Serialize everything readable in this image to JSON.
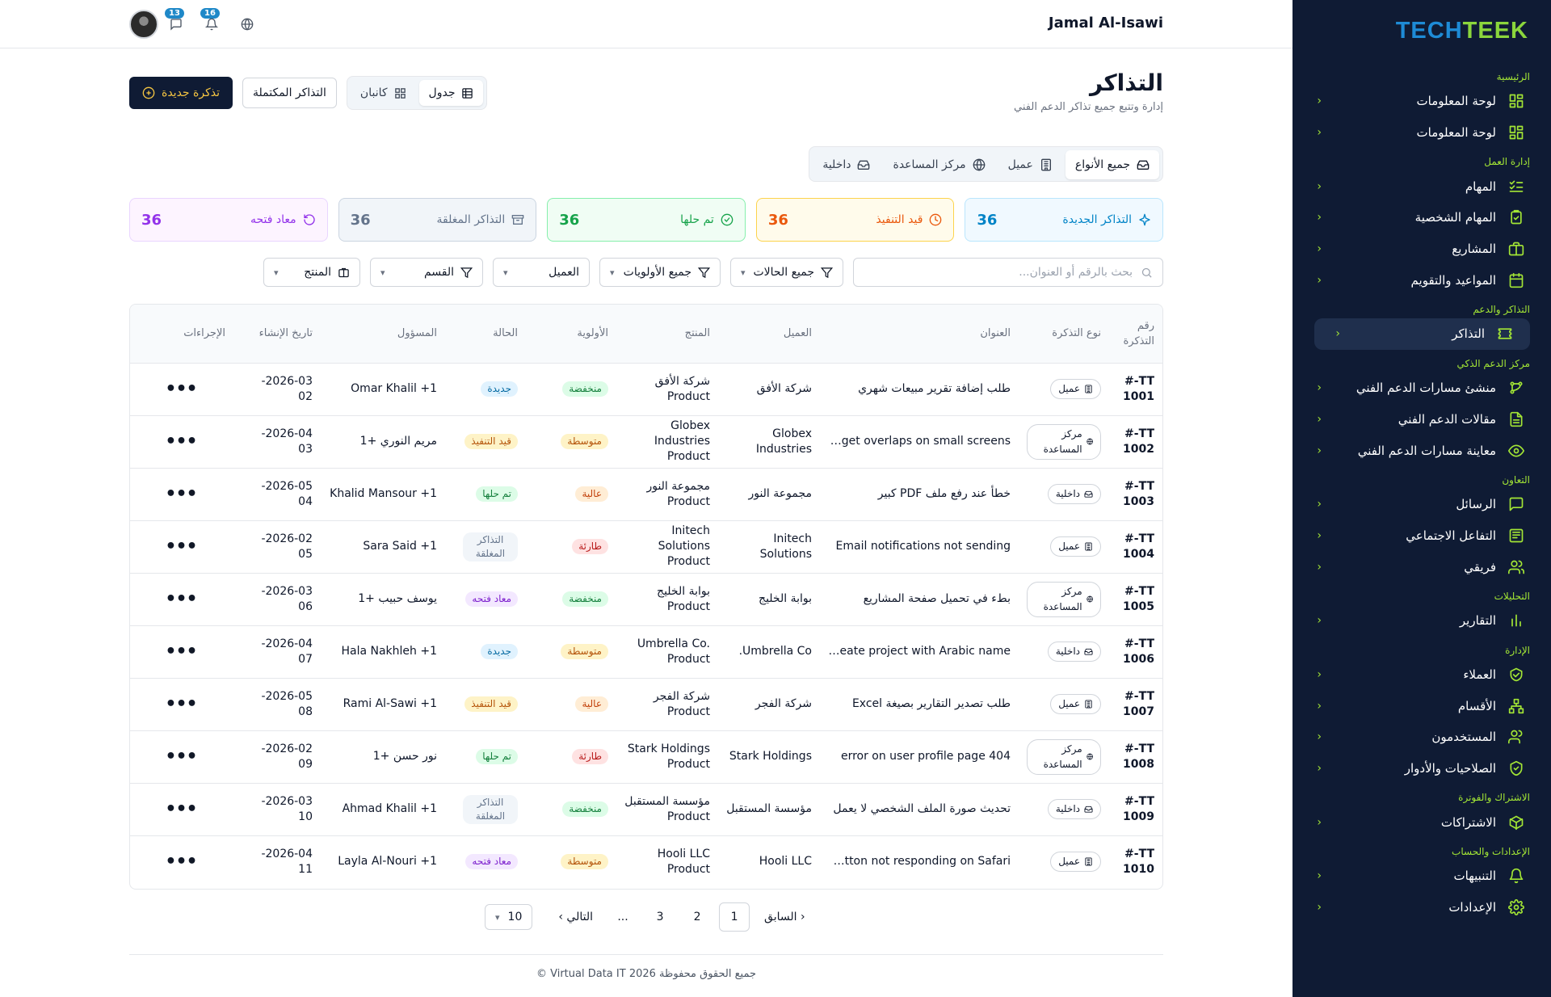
{
  "brand": {
    "part1": "TECH",
    "part2": "TEEK"
  },
  "sidebar": {
    "sections": [
      {
        "title": "الرئيسية",
        "items": [
          {
            "label": "لوحة المعلومات",
            "icon": "dashboard-icon"
          },
          {
            "label": "لوحة المعلومات",
            "icon": "dashboard-icon"
          }
        ]
      },
      {
        "title": "إدارة العمل",
        "items": [
          {
            "label": "المهام",
            "icon": "tasks-icon"
          },
          {
            "label": "المهام الشخصية",
            "icon": "clipboard-icon"
          },
          {
            "label": "المشاريع",
            "icon": "briefcase-icon"
          },
          {
            "label": "المواعيد والتقويم",
            "icon": "calendar-icon"
          }
        ]
      },
      {
        "title": "التذاكر والدعم",
        "items": [
          {
            "label": "التذاكر",
            "icon": "ticket-icon",
            "active": true
          }
        ]
      },
      {
        "title": "مركز الدعم الذكي",
        "items": [
          {
            "label": "منشئ مسارات الدعم الفني",
            "icon": "flow-icon"
          },
          {
            "label": "مقالات الدعم الفني",
            "icon": "article-icon"
          },
          {
            "label": "معاينة مسارات الدعم الفني",
            "icon": "eye-icon"
          }
        ]
      },
      {
        "title": "التعاون",
        "items": [
          {
            "label": "الرسائل",
            "icon": "message-icon"
          },
          {
            "label": "التفاعل الاجتماعي",
            "icon": "newspaper-icon"
          },
          {
            "label": "فريقي",
            "icon": "team-icon"
          }
        ]
      },
      {
        "title": "التحليلات",
        "items": [
          {
            "label": "التقارير",
            "icon": "chart-icon"
          }
        ]
      },
      {
        "title": "الإدارة",
        "items": [
          {
            "label": "العملاء",
            "icon": "handshake-icon"
          },
          {
            "label": "الأقسام",
            "icon": "departments-icon"
          },
          {
            "label": "المستخدمون",
            "icon": "users-icon"
          },
          {
            "label": "الصلاحيات والأدوار",
            "icon": "shield-icon"
          }
        ]
      },
      {
        "title": "الاشتراك والفوترة",
        "items": [
          {
            "label": "الاشتراكات",
            "icon": "package-icon"
          }
        ]
      },
      {
        "title": "الإعدادات والحساب",
        "items": [
          {
            "label": "التنبيهات",
            "icon": "bell-icon"
          },
          {
            "label": "الإعدادات",
            "icon": "gear-icon"
          }
        ]
      }
    ]
  },
  "header": {
    "user_name": "Jamal Al-Isawi",
    "messages_count": "13",
    "notifications_count": "16"
  },
  "page": {
    "title": "التذاكر",
    "subtitle": "إدارة وتتبع جميع تذاكر الدعم الفني"
  },
  "actions": {
    "new_ticket": "تذكرة جديدة",
    "completed_tickets": "التذاكر المكتملة",
    "view_table": "جدول",
    "view_kanban": "كانبان"
  },
  "type_tabs": [
    {
      "label": "جميع الأنواع",
      "active": true
    },
    {
      "label": "عميل"
    },
    {
      "label": "مركز المساعدة"
    },
    {
      "label": "داخلية"
    }
  ],
  "stats": [
    {
      "label": "التذاكر الجديدة",
      "value": "36",
      "color": "#0284c7",
      "bg": "#f0f9ff",
      "border": "#bae6fd"
    },
    {
      "label": "قيد التنفيذ",
      "value": "36",
      "color": "#ea580c",
      "bg": "#fffbeb",
      "border": "#fcd34d"
    },
    {
      "label": "تم حلها",
      "value": "36",
      "color": "#16a34a",
      "bg": "#f0fdf4",
      "border": "#86efac"
    },
    {
      "label": "التذاكر المغلقة",
      "value": "36",
      "color": "#64748b",
      "bg": "#f1f5f9",
      "border": "#cbd5e1"
    },
    {
      "label": "معاد فتحه",
      "value": "36",
      "color": "#9333ea",
      "bg": "#fdf4ff",
      "border": "#e9d5ff"
    }
  ],
  "filters": {
    "search_placeholder": "بحث بالرقم أو العنوان...",
    "status": "جميع الحالات",
    "priority": "جميع الأولويات",
    "client": "العميل",
    "department": "القسم",
    "product": "المنتج"
  },
  "table": {
    "headers": [
      "رقم التذكرة",
      "نوع التذكرة",
      "العنوان",
      "العميل",
      "المنتج",
      "الأولوية",
      "الحالة",
      "المسؤول",
      "تاريخ الإنشاء",
      "الإجراءات"
    ],
    "rows": [
      {
        "id": "TT-#\n1001",
        "type": "عميل",
        "title": "طلب إضافة تقرير مبيعات شهري",
        "client": "شركة الأفق",
        "product": "شركة الأفق Product",
        "priority": "منخفضة",
        "status": "جديدة",
        "owner": "Omar Khalil +1",
        "date": "2026-03-\n02"
      },
      {
        "id": "TT-#\n1002",
        "type": "مركز المساعدة",
        "title": "Widget overlaps on small screens...",
        "client": "Globex Industries",
        "product": "Globex Industries Product",
        "priority": "متوسطة",
        "status": "قيد التنفيذ",
        "owner": "مريم النوري +1",
        "date": "2026-04-\n03"
      },
      {
        "id": "TT-#\n1003",
        "type": "داخلية",
        "title": "خطأ عند رفع ملف PDF كبير",
        "client": "مجموعة النور",
        "product": "مجموعة النور Product",
        "priority": "عالية",
        "status": "تم حلها",
        "owner": "Khalid Mansour +1",
        "date": "2026-05-\n04"
      },
      {
        "id": "TT-#\n1004",
        "type": "عميل",
        "title": "Email notifications not sending",
        "client": "Initech Solutions",
        "product": "Initech Solutions Product",
        "priority": "طارئة",
        "status": "التذاكر المغلقة",
        "owner": "Sara Said +1",
        "date": "2026-02-\n05"
      },
      {
        "id": "TT-#\n1005",
        "type": "مركز المساعدة",
        "title": "بطء في تحميل صفحة المشاريع",
        "client": "بوابة الخليج",
        "product": "بوابة الخليج Product",
        "priority": "منخفضة",
        "status": "معاد فتحه",
        "owner": "يوسف حبيب +1",
        "date": "2026-03-\n06"
      },
      {
        "id": "TT-#\n1006",
        "type": "داخلية",
        "title": "Cannot create project with Arabic name...",
        "client": "Umbrella Co.",
        "product": "Umbrella Co. Product",
        "priority": "متوسطة",
        "status": "جديدة",
        "owner": "Hala Nakhleh +1",
        "date": "2026-04-\n07"
      },
      {
        "id": "TT-#\n1007",
        "type": "عميل",
        "title": "طلب تصدير التقارير بصيغة Excel",
        "client": "شركة الفجر",
        "product": "شركة الفجر Product",
        "priority": "عالية",
        "status": "قيد التنفيذ",
        "owner": "Rami Al-Sawi +1",
        "date": "2026-05-\n08"
      },
      {
        "id": "TT-#\n1008",
        "type": "مركز المساعدة",
        "title": "404 error on user profile page",
        "client": "Stark Holdings",
        "product": "Stark Holdings Product",
        "priority": "طارئة",
        "status": "تم حلها",
        "owner": "نور حسن +1",
        "date": "2026-02-\n09"
      },
      {
        "id": "TT-#\n1009",
        "type": "داخلية",
        "title": "تحديث صورة الملف الشخصي لا يعمل",
        "client": "مؤسسة المستقبل",
        "product": "مؤسسة المستقبل Product",
        "priority": "منخفضة",
        "status": "التذاكر المغلقة",
        "owner": "Ahmad Khalil +1",
        "date": "2026-03-\n10"
      },
      {
        "id": "TT-#\n1010",
        "type": "عميل",
        "title": "Submit button not responding on Safari...",
        "client": "Hooli LLC",
        "product": "Hooli LLC Product",
        "priority": "متوسطة",
        "status": "معاد فتحه",
        "owner": "Layla Al-Nouri +1",
        "date": "2026-04-\n11"
      }
    ]
  },
  "priority_colors": {
    "منخفضة": {
      "bg": "#dcfce7",
      "fg": "#15803d"
    },
    "متوسطة": {
      "bg": "#fef3c7",
      "fg": "#b45309"
    },
    "عالية": {
      "bg": "#ffedd5",
      "fg": "#c2410c"
    },
    "طارئة": {
      "bg": "#fee2e2",
      "fg": "#b91c1c"
    }
  },
  "status_colors": {
    "جديدة": {
      "bg": "#e0f2fe",
      "fg": "#0369a1"
    },
    "قيد التنفيذ": {
      "bg": "#fef3c7",
      "fg": "#b45309"
    },
    "تم حلها": {
      "bg": "#dcfce7",
      "fg": "#15803d"
    },
    "التذاكر المغلقة": {
      "bg": "#f1f5f9",
      "fg": "#64748b"
    },
    "معاد فتحه": {
      "bg": "#f3e8ff",
      "fg": "#7e22ce"
    }
  },
  "pagination": {
    "prev": "السابق",
    "next": "التالي",
    "pages": [
      "1",
      "2",
      "3"
    ],
    "ellipsis": "...",
    "page_size": "10"
  },
  "footer": {
    "copyright": "جميع الحقوق محفوظة 2026 Virtual Data IT ©"
  }
}
